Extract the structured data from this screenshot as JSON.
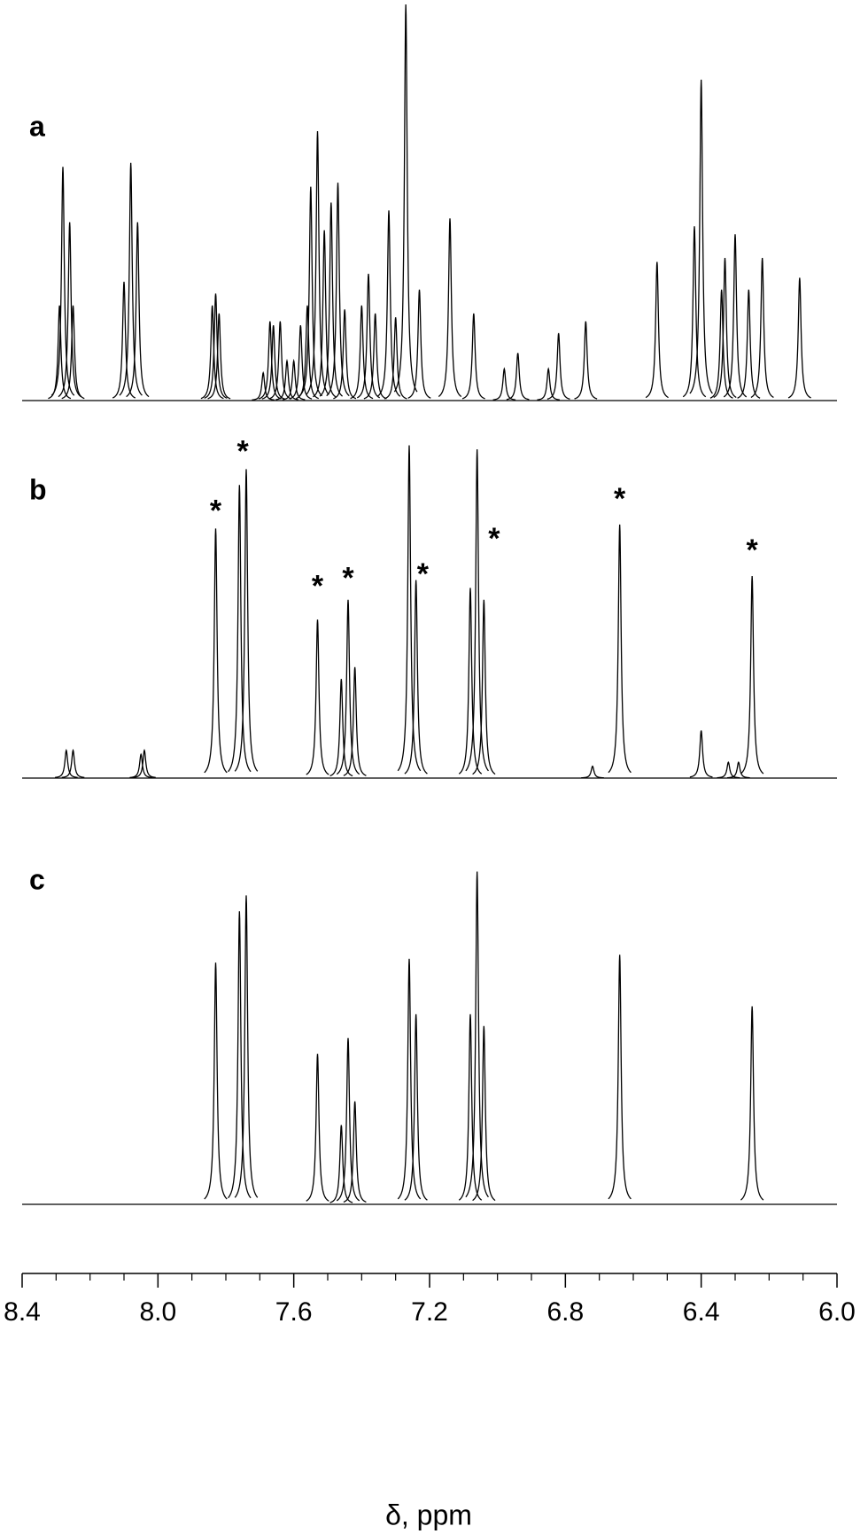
{
  "chart_data": {
    "type": "spectrum",
    "x_label": "δ, ppm",
    "xlim": [
      8.4,
      6.0
    ],
    "xticks": [
      8.4,
      {
        "value": 8.0,
        "label": "8.0"
      },
      7.6,
      7.2,
      6.8,
      6.4,
      {
        "value": 6.0,
        "label": "6.0"
      }
    ],
    "xminorticks": [
      8.3,
      8.2,
      8.1,
      7.9,
      7.8,
      7.7,
      7.5,
      7.4,
      7.3,
      7.1,
      7.0,
      6.9,
      6.7,
      6.6,
      6.5,
      6.3,
      6.2,
      6.1
    ],
    "ylim": [
      0,
      100
    ],
    "series": [
      {
        "name": "a",
        "color": "#000000",
        "x": [
          8.29,
          8.28,
          8.26,
          8.25,
          8.1,
          8.08,
          8.06,
          7.84,
          7.83,
          7.82,
          7.69,
          7.67,
          7.66,
          7.64,
          7.62,
          7.6,
          7.58,
          7.56,
          7.55,
          7.53,
          7.51,
          7.49,
          7.47,
          7.45,
          7.4,
          7.38,
          7.36,
          7.32,
          7.3,
          7.27,
          7.23,
          7.14,
          7.07,
          6.98,
          6.94,
          6.85,
          6.82,
          6.74,
          6.53,
          6.42,
          6.4,
          6.34,
          6.33,
          6.3,
          6.26,
          6.22,
          6.11
        ],
        "values": [
          24,
          59,
          45,
          24,
          30,
          60,
          45,
          24,
          27,
          22,
          7,
          20,
          19,
          20,
          10,
          10,
          19,
          24,
          54,
          68,
          43,
          50,
          55,
          23,
          24,
          32,
          22,
          48,
          21,
          100,
          28,
          46,
          22,
          8,
          12,
          8,
          17,
          20,
          35,
          44,
          81,
          28,
          36,
          42,
          28,
          36,
          31
        ]
      },
      {
        "name": "b",
        "color": "#000000",
        "x": [
          8.27,
          8.25,
          8.05,
          8.04,
          7.83,
          7.76,
          7.74,
          7.53,
          7.46,
          7.44,
          7.42,
          7.26,
          7.24,
          7.08,
          7.06,
          7.04,
          6.72,
          6.64,
          6.4,
          6.32,
          6.29,
          6.25
        ],
        "values": [
          7,
          7,
          6,
          7,
          63,
          74,
          78,
          40,
          25,
          45,
          28,
          84,
          50,
          48,
          83,
          45,
          3,
          64,
          12,
          4,
          4,
          51
        ]
      },
      {
        "name": "c",
        "color": "#000000",
        "x": [
          7.83,
          7.76,
          7.74,
          7.53,
          7.46,
          7.44,
          7.42,
          7.26,
          7.24,
          7.08,
          7.06,
          7.04,
          6.64,
          6.25
        ],
        "values": [
          61,
          74,
          78,
          38,
          20,
          42,
          26,
          62,
          48,
          48,
          84,
          45,
          63,
          50
        ]
      }
    ],
    "annotations": [
      {
        "text": "*",
        "series": "b",
        "x": 7.83,
        "y": 67
      },
      {
        "text": "*",
        "series": "b",
        "x": 7.75,
        "y": 82
      },
      {
        "text": "*",
        "series": "b",
        "x": 7.53,
        "y": 48
      },
      {
        "text": "*",
        "series": "b",
        "x": 7.44,
        "y": 50
      },
      {
        "text": "*",
        "series": "b",
        "x": 7.22,
        "y": 51
      },
      {
        "text": "*",
        "series": "b",
        "x": 7.01,
        "y": 60
      },
      {
        "text": "*",
        "series": "b",
        "x": 6.64,
        "y": 70
      },
      {
        "text": "*",
        "series": "b",
        "x": 6.25,
        "y": 57
      }
    ]
  }
}
